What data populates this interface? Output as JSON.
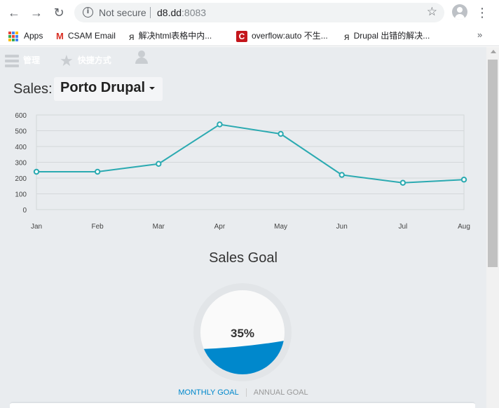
{
  "browser": {
    "security_text": "Not secure",
    "url_host": "d8.dd",
    "url_port": ":8083",
    "bookmarks": [
      {
        "label": "Apps",
        "icon": "apps-grid-icon"
      },
      {
        "label": "CSAM Email",
        "icon": "gmail-icon"
      },
      {
        "label": "解决html表格中内...",
        "icon": "drupal-favicon-icon"
      },
      {
        "label": "overflow:auto 不生...",
        "icon": "csdn-favicon-icon"
      },
      {
        "label": "Drupal 出错的解决...",
        "icon": "drupal-favicon-icon"
      }
    ],
    "more_bookmarks": "»"
  },
  "admin_bar": {
    "manage_label": "管理",
    "shortcuts_label": "快捷方式"
  },
  "sales": {
    "label": "Sales:",
    "store": "Porto Drupal"
  },
  "chart_data": {
    "type": "line",
    "categories": [
      "Jan",
      "Feb",
      "Mar",
      "Apr",
      "May",
      "Jun",
      "Jul",
      "Aug"
    ],
    "series": [
      {
        "values": [
          240,
          240,
          290,
          540,
          480,
          220,
          170,
          190
        ]
      }
    ],
    "yticks": [
      0,
      100,
      200,
      300,
      400,
      500,
      600
    ],
    "ylim": [
      0,
      600
    ],
    "grid": true,
    "line_color": "#2baab1"
  },
  "goal": {
    "title": "Sales Goal",
    "value_label": "35%",
    "fill_fraction": 0.35,
    "fill_color": "#0088cc",
    "tabs": [
      "MONTHLY GOAL",
      "ANNUAL GOAL"
    ]
  }
}
